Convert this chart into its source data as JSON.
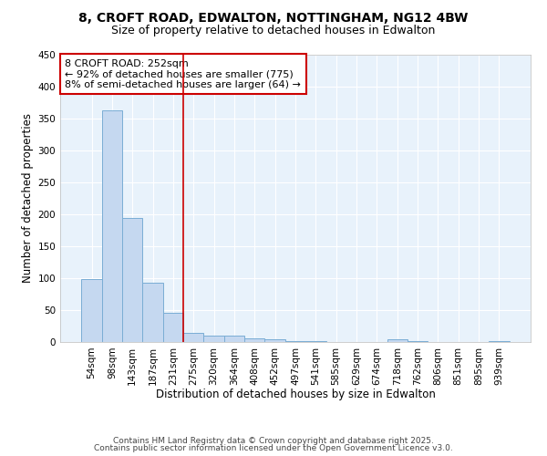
{
  "title_line1": "8, CROFT ROAD, EDWALTON, NOTTINGHAM, NG12 4BW",
  "title_line2": "Size of property relative to detached houses in Edwalton",
  "xlabel": "Distribution of detached houses by size in Edwalton",
  "ylabel": "Number of detached properties",
  "footer_line1": "Contains HM Land Registry data © Crown copyright and database right 2025.",
  "footer_line2": "Contains public sector information licensed under the Open Government Licence v3.0.",
  "annotation_text": "8 CROFT ROAD: 252sqm\n← 92% of detached houses are smaller (775)\n8% of semi-detached houses are larger (64) →",
  "red_line_x": 4.5,
  "categories": [
    "54sqm",
    "98sqm",
    "143sqm",
    "187sqm",
    "231sqm",
    "275sqm",
    "320sqm",
    "364sqm",
    "408sqm",
    "452sqm",
    "497sqm",
    "541sqm",
    "585sqm",
    "629sqm",
    "674sqm",
    "718sqm",
    "762sqm",
    "806sqm",
    "851sqm",
    "895sqm",
    "939sqm"
  ],
  "values": [
    99,
    363,
    195,
    93,
    46,
    14,
    10,
    10,
    6,
    4,
    2,
    1,
    0,
    0,
    0,
    4,
    2,
    0,
    0,
    0,
    2
  ],
  "bar_color": "#c5d8f0",
  "bar_edge_color": "#7aadd4",
  "red_line_color": "#cc0000",
  "background_color": "#e8f2fb",
  "fig_background_color": "#ffffff",
  "grid_color": "#ffffff",
  "ylim": [
    0,
    450
  ],
  "yticks": [
    0,
    50,
    100,
    150,
    200,
    250,
    300,
    350,
    400,
    450
  ],
  "annotation_box_facecolor": "#ffffff",
  "annotation_box_edge": "#cc0000",
  "title_fontsize": 10,
  "subtitle_fontsize": 9,
  "axis_label_fontsize": 8.5,
  "tick_fontsize": 7.5,
  "annotation_fontsize": 8,
  "footer_fontsize": 6.5
}
